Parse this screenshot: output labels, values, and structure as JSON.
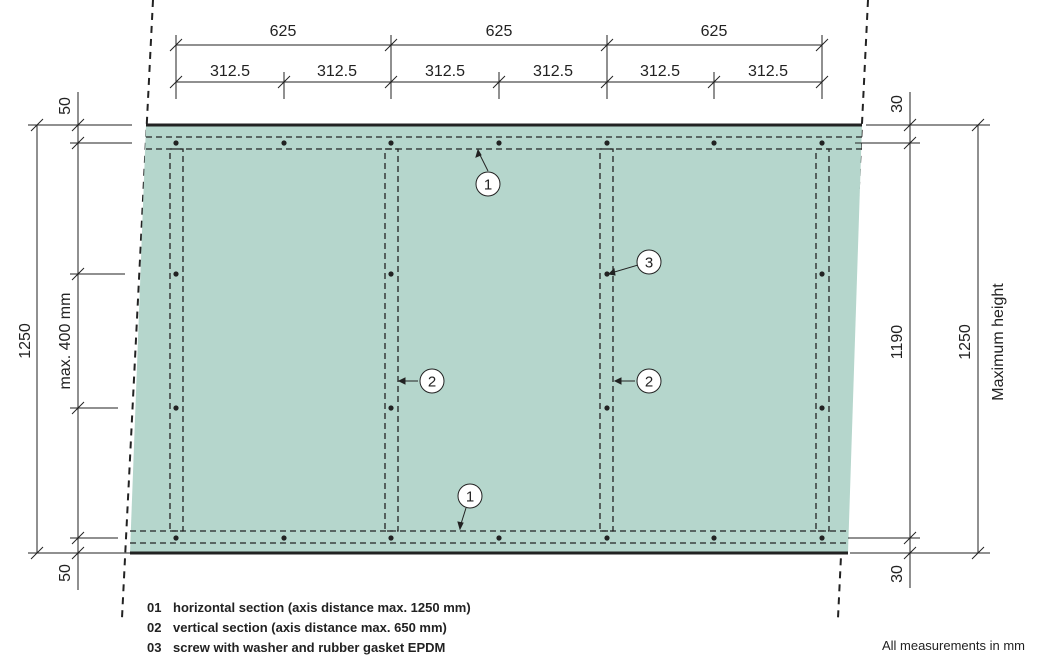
{
  "dimensions": {
    "top_major": [
      "625",
      "625",
      "625"
    ],
    "top_minor": [
      "312.5",
      "312.5",
      "312.5",
      "312.5",
      "312.5",
      "312.5"
    ],
    "left_edge_top": "50",
    "left_edge_bottom": "50",
    "left_total": "1250",
    "left_spacing": "max. 400 mm",
    "right_edge_top": "30",
    "right_edge_bottom": "30",
    "right_inner": "1190",
    "right_total": "1250",
    "right_label": "Maximum height"
  },
  "callouts": [
    "1",
    "1",
    "2",
    "2",
    "3"
  ],
  "legend": [
    {
      "num": "01",
      "text": "horizontal section (axis distance max. 1250 mm)"
    },
    {
      "num": "02",
      "text": "vertical section (axis distance max. 650 mm)"
    },
    {
      "num": "03",
      "text": "screw with washer and rubber gasket EPDM"
    }
  ],
  "note": "All measurements in mm",
  "colors": {
    "panel": "#b5d6cc",
    "line": "#222222"
  }
}
